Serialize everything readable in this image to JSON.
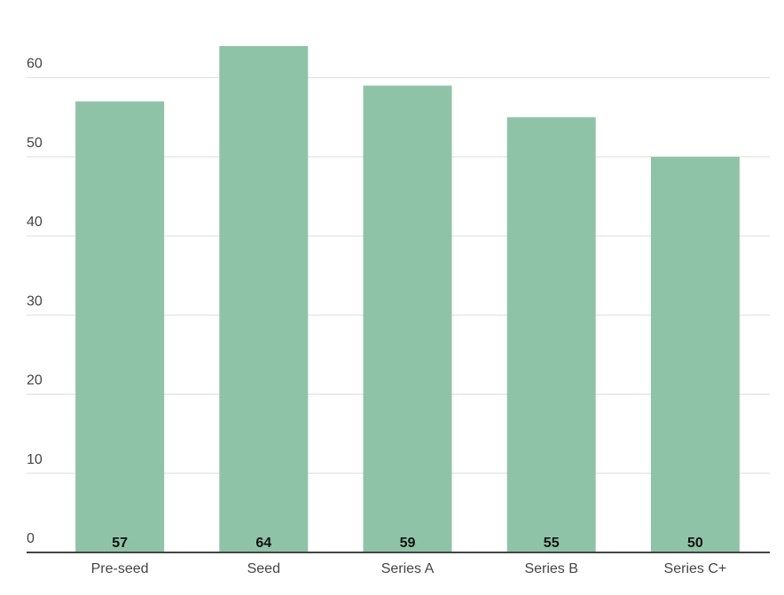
{
  "chart_data": {
    "type": "bar",
    "categories": [
      "Pre-seed",
      "Seed",
      "Series A",
      "Series B",
      "Series C+"
    ],
    "values": [
      57,
      64,
      59,
      55,
      50
    ],
    "color": "#8fc3a7",
    "ylim": [
      0,
      65
    ],
    "yticks": [
      0,
      10,
      20,
      30,
      40,
      50,
      60
    ],
    "grid": true
  }
}
